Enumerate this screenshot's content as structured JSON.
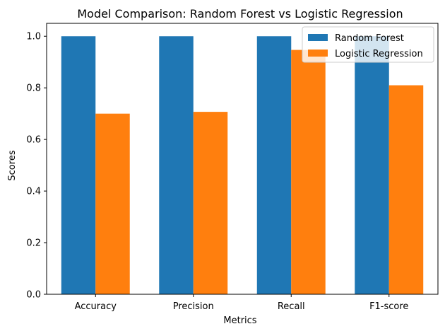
{
  "chart_data": {
    "type": "bar",
    "title": "Model Comparison: Random Forest vs Logistic Regression",
    "xlabel": "Metrics",
    "ylabel": "Scores",
    "categories": [
      "Accuracy",
      "Precision",
      "Recall",
      "F1-score"
    ],
    "series": [
      {
        "name": "Random Forest",
        "values": [
          1.0,
          1.0,
          1.0,
          1.0
        ],
        "color": "#1f77b4"
      },
      {
        "name": "Logistic Regression",
        "values": [
          0.7,
          0.707,
          0.947,
          0.81
        ],
        "color": "#ff7f0e"
      }
    ],
    "ylim": [
      0,
      1.05
    ],
    "yticks": [
      "0.0",
      "0.2",
      "0.4",
      "0.6",
      "0.8",
      "1.0"
    ],
    "grid": false,
    "legend_position": "top-right"
  }
}
